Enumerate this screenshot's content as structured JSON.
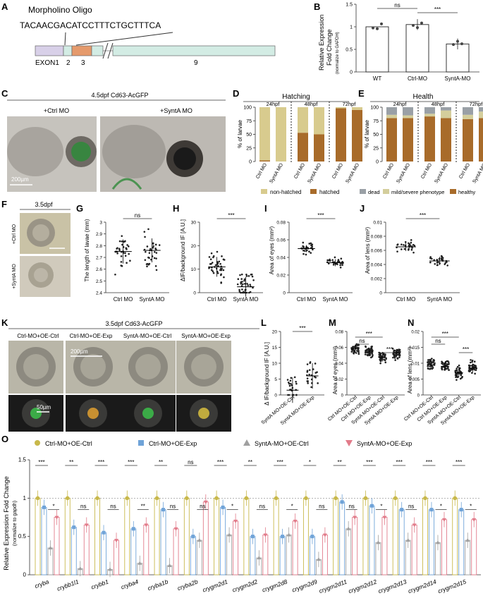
{
  "panels": {
    "A": {
      "letter": "A",
      "title": "Morpholino Oligo",
      "sequence": "TACAACGACATCCTTTCTGCTTTCA",
      "exon_labels": [
        "EXON1",
        "2",
        "3",
        "9"
      ]
    },
    "B": {
      "letter": "B",
      "ylabel_line1": "Relative Expression",
      "ylabel_line2": "Fold Change",
      "ylabel_line3": "(normalize to GAPDH)",
      "sig": [
        "ns",
        "***"
      ]
    },
    "C": {
      "letter": "C",
      "header": "4.5dpf  Cd63-AcGFP",
      "left": "+Ctrl MO",
      "right": "+SyntA MO",
      "scale": "200µm"
    },
    "D": {
      "letter": "D",
      "header": "Hatching",
      "times": [
        "24hpf",
        "48hpf",
        "72hpf"
      ],
      "ylabel": "% of larvae",
      "legend": [
        "non-hatched",
        "hatched"
      ]
    },
    "E": {
      "letter": "E",
      "header": "Health",
      "times": [
        "24hpf",
        "48hpf",
        "72hpf"
      ],
      "ylabel": "% of larvae",
      "legend": [
        "dead",
        "mild/severe phenotype",
        "healthy"
      ]
    },
    "F": {
      "letter": "F",
      "header": "3.5dpf",
      "top": "+Ctrl MO",
      "bottom": "+SyntA MO"
    },
    "G": {
      "letter": "G",
      "ylabel": "The length of lavae (mm)",
      "sig": "ns"
    },
    "H": {
      "letter": "H",
      "ylabel": "ΔIF/background IF [A.U.]",
      "sig": "***"
    },
    "I": {
      "letter": "I",
      "ylabel": "Area of eyes (mm²)",
      "sig": "***"
    },
    "J": {
      "letter": "J",
      "ylabel": "Area of lens (mm²)",
      "sig": "***"
    },
    "K": {
      "letter": "K",
      "header": "3.5dpf  Cd63-AcGFP",
      "cols": [
        "Ctrl-MO+OE-Ctrl",
        "Ctrl-MO+OE-Exp",
        "SyntA-MO+OE-Ctrl",
        "SyntA-MO+OE-Exp"
      ],
      "scale_top": "200µm",
      "scale_bottom": "50µm"
    },
    "L": {
      "letter": "L",
      "ylabel": "Δ IF/background IF [A.U.]",
      "sig": "***"
    },
    "M": {
      "letter": "M",
      "ylabel": "Area of eyes (mm²)",
      "sig": [
        "***",
        "ns",
        "***"
      ]
    },
    "N": {
      "letter": "N",
      "ylabel": "Area of lens (mm²)",
      "sig": [
        "***",
        "ns",
        "***"
      ]
    },
    "O": {
      "letter": "O",
      "ylabel_line1": "Relative Expression Fold Change",
      "ylabel_line2": "(normalize to gapdh)"
    }
  },
  "chart_data": [
    {
      "id": "B",
      "type": "bar",
      "categories": [
        "WT",
        "Ctrl-MO",
        "SyntA-MO"
      ],
      "values": [
        1.0,
        1.05,
        0.62
      ],
      "ylim": [
        0,
        1.5
      ],
      "yticks": [
        0,
        0.5,
        1.0,
        1.5
      ]
    },
    {
      "id": "D",
      "type": "bar",
      "stacked": true,
      "categories": [
        "Ctrl MO",
        "SyntA MO",
        "Ctrl MO",
        "SyntA MO",
        "Ctrl MO",
        "SyntA MO"
      ],
      "series": [
        {
          "name": "hatched",
          "values": [
            2,
            0,
            53,
            50,
            98,
            95
          ]
        },
        {
          "name": "non-hatched",
          "values": [
            98,
            100,
            47,
            50,
            2,
            5
          ]
        }
      ],
      "ylim": [
        0,
        100
      ],
      "yticks": [
        0,
        25,
        50,
        75,
        100
      ]
    },
    {
      "id": "E",
      "type": "bar",
      "stacked": true,
      "categories": [
        "Ctrl MO",
        "SyntA MO",
        "Ctrl MO",
        "SyntA MO",
        "Ctrl MO",
        "SyntA MO"
      ],
      "series": [
        {
          "name": "healthy",
          "values": [
            80,
            80,
            83,
            80,
            78,
            80
          ]
        },
        {
          "name": "mild/severe phenotype",
          "values": [
            6,
            5,
            5,
            14,
            8,
            12
          ]
        },
        {
          "name": "dead",
          "values": [
            14,
            15,
            12,
            6,
            14,
            8
          ]
        }
      ],
      "ylim": [
        0,
        100
      ],
      "yticks": [
        0,
        25,
        50,
        75,
        100
      ]
    },
    {
      "id": "G",
      "type": "scatter",
      "categories": [
        "Ctrl MO",
        "SyntA MO"
      ],
      "means": [
        2.75,
        2.76
      ],
      "ylim": [
        2.4,
        3.0
      ],
      "yticks": [
        2.4,
        2.5,
        2.6,
        2.7,
        2.8,
        2.9,
        3.0
      ]
    },
    {
      "id": "H",
      "type": "scatter",
      "categories": [
        "Ctrl MO",
        "SyntA MO"
      ],
      "means": [
        11,
        2.5
      ],
      "ylim": [
        0,
        30
      ],
      "yticks": [
        0,
        10,
        20,
        30
      ]
    },
    {
      "id": "I",
      "type": "scatter",
      "categories": [
        "Ctrl MO",
        "SyntA MO"
      ],
      "means": [
        0.05,
        0.034
      ],
      "ylim": [
        0,
        0.08
      ],
      "yticks": [
        0,
        0.02,
        0.04,
        0.06,
        0.08
      ]
    },
    {
      "id": "J",
      "type": "scatter",
      "categories": [
        "Ctrl MO",
        "SyntA MO"
      ],
      "means": [
        0.0065,
        0.0045
      ],
      "ylim": [
        0,
        0.01
      ],
      "yticks": [
        0,
        0.002,
        0.004,
        0.006,
        0.008,
        0.01
      ]
    },
    {
      "id": "L",
      "type": "scatter",
      "categories": [
        "SyntA MO+OE-Ctrl",
        "SyntA MO+OE-Exp"
      ],
      "means": [
        1.5,
        6
      ],
      "ylim": [
        0,
        20
      ],
      "yticks": [
        0,
        5,
        10,
        15,
        20
      ]
    },
    {
      "id": "M",
      "type": "scatter",
      "categories": [
        "Ctrl MO+OE-Ctrl",
        "Ctrl MO+OE-Exp",
        "SyntA MO+OE-Ctrl",
        "SyntA MO+OE-Exp"
      ],
      "means": [
        0.058,
        0.055,
        0.047,
        0.053
      ],
      "ylim": [
        0,
        0.08
      ],
      "yticks": [
        0,
        0.02,
        0.04,
        0.06,
        0.08
      ]
    },
    {
      "id": "N",
      "type": "scatter",
      "categories": [
        "Ctrl MO+OE-Ctrl",
        "Ctrl MO+OE-Exp",
        "SyntA MO+OE-Ctrl",
        "SyntA MO+OE-Exp"
      ],
      "means": [
        0.0095,
        0.009,
        0.007,
        0.0085
      ],
      "ylim": [
        0,
        0.02
      ],
      "yticks": [
        0,
        0.005,
        0.01,
        0.015,
        0.02
      ]
    },
    {
      "id": "O",
      "type": "bar",
      "legend": [
        "Ctrl-MO+OE-Ctrl",
        "Ctrl-MO+OE-Exp",
        "SyntA-MO+OE-Ctrl",
        "SyntA-MO+OE-Exp"
      ],
      "categories": [
        "cryba",
        "crybb1l1",
        "crybb1",
        "cryba4",
        "cryba1b",
        "cryba2b",
        "crygm2d1",
        "crygm2d2",
        "crygm2d8",
        "crygm2d9",
        "crygm2d11",
        "crygm2d12",
        "crygm2d13",
        "crygm2d14",
        "crygm2d15"
      ],
      "series": [
        {
          "name": "Ctrl-MO+OE-Ctrl",
          "values": [
            1,
            1,
            1,
            1,
            1,
            1,
            1,
            1,
            1,
            1,
            1,
            1,
            1,
            1,
            1
          ]
        },
        {
          "name": "Ctrl-MO+OE-Exp",
          "values": [
            0.88,
            0.62,
            0.55,
            0.6,
            0.85,
            0.5,
            0.88,
            0.5,
            0.5,
            0.5,
            0.95,
            0.9,
            0.85,
            0.85,
            0.85
          ]
        },
        {
          "name": "SyntA-MO+OE-Ctrl",
          "values": [
            0.35,
            0.08,
            0.07,
            0.15,
            0.12,
            0.45,
            0.52,
            0.22,
            0.52,
            0.2,
            0.6,
            0.42,
            0.45,
            0.42,
            0.45
          ]
        },
        {
          "name": "SyntA-MO+OE-Exp",
          "values": [
            0.75,
            0.65,
            0.45,
            0.65,
            0.6,
            0.95,
            0.7,
            0.52,
            0.7,
            0.52,
            0.75,
            0.75,
            0.65,
            0.72,
            0.72
          ]
        }
      ],
      "sig_top": [
        "***",
        "**",
        "***",
        "***",
        "**",
        "ns",
        "***",
        "**",
        "***",
        "*",
        "**",
        "***",
        "***",
        "***",
        "***"
      ],
      "sig_low": [
        "*",
        "ns",
        "ns",
        "**",
        "ns",
        "ns",
        "*",
        "ns",
        "*",
        "ns",
        "ns",
        "*",
        "ns",
        "*",
        "*"
      ],
      "ylim": [
        0,
        1.5
      ],
      "yticks": [
        0,
        0.5,
        1.0,
        1.5
      ],
      "colors": [
        "#c8b84a",
        "#6fa3d8",
        "#a0a0a0",
        "#e27b8a"
      ]
    }
  ],
  "colors": {
    "hatched": "#a86b2a",
    "nonhatched": "#d8cb8e",
    "dead": "#9aa0a6",
    "mild": "#d4ce9c",
    "healthy": "#a86b2a",
    "exon1": "#d8d0e8",
    "exon3": "#e59a6c",
    "exon9": "#d3ece4"
  }
}
